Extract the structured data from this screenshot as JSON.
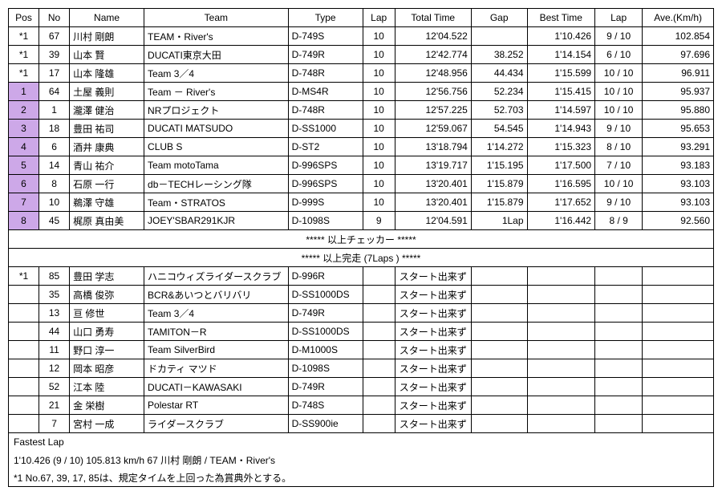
{
  "headers": [
    "Pos",
    "No",
    "Name",
    "Team",
    "Type",
    "Lap",
    "Total Time",
    "Gap",
    "Best Time",
    "Lap",
    "Ave.(Km/h)"
  ],
  "rows": [
    {
      "pos": "*1",
      "hl": false,
      "no": "67",
      "name": "川村 剛朗",
      "team": "TEAM・River's",
      "type": "D-749S",
      "lap": "10",
      "total": "12'04.522",
      "gap": "",
      "best": "1'10.426",
      "lap2": "9 / 10",
      "ave": "102.854"
    },
    {
      "pos": "*1",
      "hl": false,
      "no": "39",
      "name": "山本 賢",
      "team": "DUCATI東京大田",
      "type": "D-749R",
      "lap": "10",
      "total": "12'42.774",
      "gap": "38.252",
      "best": "1'14.154",
      "lap2": "6 / 10",
      "ave": "97.696"
    },
    {
      "pos": "*1",
      "hl": false,
      "no": "17",
      "name": "山本 隆雄",
      "team": "Team 3／4",
      "type": "D-748R",
      "lap": "10",
      "total": "12'48.956",
      "gap": "44.434",
      "best": "1'15.599",
      "lap2": "10 / 10",
      "ave": "96.911"
    },
    {
      "pos": "1",
      "hl": true,
      "no": "64",
      "name": "土屋 義則",
      "team": "Team － River's",
      "type": "D-MS4R",
      "lap": "10",
      "total": "12'56.756",
      "gap": "52.234",
      "best": "1'15.415",
      "lap2": "10 / 10",
      "ave": "95.937"
    },
    {
      "pos": "2",
      "hl": true,
      "no": "1",
      "name": "瀧澤 健治",
      "team": "NRプロジェクト",
      "type": "D-748R",
      "lap": "10",
      "total": "12'57.225",
      "gap": "52.703",
      "best": "1'14.597",
      "lap2": "10 / 10",
      "ave": "95.880"
    },
    {
      "pos": "3",
      "hl": true,
      "no": "18",
      "name": "豊田 祐司",
      "team": "DUCATI MATSUDO",
      "type": "D-SS1000",
      "lap": "10",
      "total": "12'59.067",
      "gap": "54.545",
      "best": "1'14.943",
      "lap2": "9 / 10",
      "ave": "95.653"
    },
    {
      "pos": "4",
      "hl": true,
      "no": "6",
      "name": "酒井 康典",
      "team": "CLUB S",
      "type": "D-ST2",
      "lap": "10",
      "total": "13'18.794",
      "gap": "1'14.272",
      "best": "1'15.323",
      "lap2": "8 / 10",
      "ave": "93.291"
    },
    {
      "pos": "5",
      "hl": true,
      "no": "14",
      "name": "青山 祐介",
      "team": "Team motoTama",
      "type": "D-996SPS",
      "lap": "10",
      "total": "13'19.717",
      "gap": "1'15.195",
      "best": "1'17.500",
      "lap2": "7 / 10",
      "ave": "93.183"
    },
    {
      "pos": "6",
      "hl": true,
      "no": "8",
      "name": "石原 一行",
      "team": "db－TECHレーシング隊",
      "type": "D-996SPS",
      "lap": "10",
      "total": "13'20.401",
      "gap": "1'15.879",
      "best": "1'16.595",
      "lap2": "10 / 10",
      "ave": "93.103"
    },
    {
      "pos": "7",
      "hl": true,
      "no": "10",
      "name": "鵜澤 守雄",
      "team": "Team・STRATOS",
      "type": "D-999S",
      "lap": "10",
      "total": "13'20.401",
      "gap": "1'15.879",
      "best": "1'17.652",
      "lap2": "9 / 10",
      "ave": "93.103"
    },
    {
      "pos": "8",
      "hl": true,
      "no": "45",
      "name": "梶原 真由美",
      "team": "JOEY'SBAR291KJR",
      "type": "D-1098S",
      "lap": "9",
      "total": "12'04.591",
      "gap": "1Lap",
      "best": "1'16.442",
      "lap2": "8 / 9",
      "ave": "92.560"
    }
  ],
  "banner1": "***** 以上チェッカー *****",
  "banner2": "***** 以上完走 (7Laps ) *****",
  "rows2": [
    {
      "pos": "*1",
      "no": "85",
      "name": "豊田 学志",
      "team": "ハニコウィズライダースクラブ",
      "type": "D-996R",
      "total": "スタート出来ず"
    },
    {
      "pos": "",
      "no": "35",
      "name": "高橋 俊弥",
      "team": "BCR&あいつとバリバリ",
      "type": "D-SS1000DS",
      "total": "スタート出来ず"
    },
    {
      "pos": "",
      "no": "13",
      "name": "亘 修世",
      "team": "Team 3／4",
      "type": "D-749R",
      "total": "スタート出来ず"
    },
    {
      "pos": "",
      "no": "44",
      "name": "山口 勇寿",
      "team": "TAMITON－R",
      "type": "D-SS1000DS",
      "total": "スタート出来ず"
    },
    {
      "pos": "",
      "no": "11",
      "name": "野口 淳一",
      "team": "Team SilverBird",
      "type": "D-M1000S",
      "total": "スタート出来ず"
    },
    {
      "pos": "",
      "no": "12",
      "name": "岡本 昭彦",
      "team": "ドカティ マツド",
      "type": "D-1098S",
      "total": "スタート出来ず"
    },
    {
      "pos": "",
      "no": "52",
      "name": "江本 陸",
      "team": "DUCATI－KAWASAKI",
      "type": "D-749R",
      "total": "スタート出来ず"
    },
    {
      "pos": "",
      "no": "21",
      "name": "金 栄樹",
      "team": "Polestar RT",
      "type": "D-748S",
      "total": "スタート出来ず"
    },
    {
      "pos": "",
      "no": "7",
      "name": "宮村 一成",
      "team": "ライダースクラブ",
      "type": "D-SS900ie",
      "total": "スタート出来ず"
    }
  ],
  "footer": [
    "Fastest Lap",
    "1'10.426 (9 / 10) 105.813 km/h 67 川村 剛朗 / TEAM・River's",
    "*1 No.67, 39, 17, 85は、規定タイムを上回った為賞典外とする。"
  ]
}
